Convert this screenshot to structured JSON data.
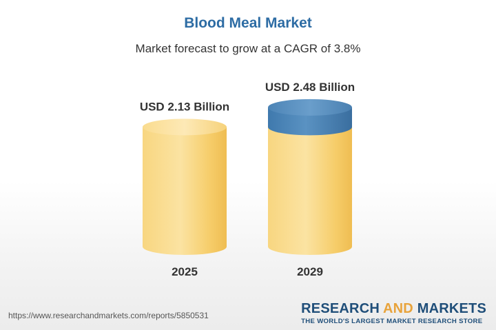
{
  "header": {
    "title": "Blood Meal Market",
    "subtitle": "Market forecast to grow at a CAGR of 3.8%"
  },
  "footer": {
    "url": "https://www.researchandmarkets.com/reports/5850531",
    "logo_research": "RESEARCH",
    "logo_and": "AND",
    "logo_markets": "MARKETS",
    "logo_tagline": "THE WORLD'S LARGEST MARKET RESEARCH STORE"
  },
  "colors": {
    "title": "#2d6ca4",
    "cylinder_yellow": "#f7cf6b",
    "cylinder_top_yellow": "#fbe09a",
    "growth_blue": "#4f87b8",
    "logo_navy": "#1f4e79",
    "logo_orange": "#e8a33b"
  },
  "chart_data": {
    "type": "bar",
    "style": "3d-cylinder",
    "title": "Blood Meal Market",
    "subtitle": "Market forecast to grow at a CAGR of 3.8%",
    "categories": [
      "2025",
      "2029"
    ],
    "values": [
      2.13,
      2.48
    ],
    "data_labels": [
      "USD 2.13 Billion",
      "USD 2.48 Billion"
    ],
    "unit": "USD Billion",
    "cagr": "3.8%",
    "highlight": "growth segment of 2029 bar shown in blue",
    "grid": false,
    "legend": "none"
  }
}
